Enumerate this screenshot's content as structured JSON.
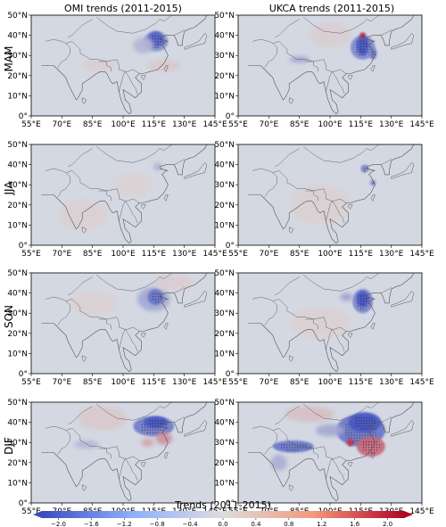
{
  "chart_data": {
    "type": "heatmap",
    "columns": [
      "OMI trends (2011-2015)",
      "UKCA trends (2011-2015)"
    ],
    "rows": [
      "MAM",
      "JJA",
      "SON",
      "DJF"
    ],
    "x_tick_labels": [
      "55°E",
      "70°E",
      "85°E",
      "100°E",
      "115°E",
      "130°E",
      "145°E"
    ],
    "y_tick_labels": [
      "0°",
      "10°N",
      "20°N",
      "30°N",
      "40°N",
      "50°N"
    ],
    "x_ticks": [
      55,
      70,
      85,
      100,
      115,
      130,
      145
    ],
    "y_ticks": [
      0,
      10,
      20,
      30,
      40,
      50
    ],
    "xlim": [
      55,
      145
    ],
    "ylim": [
      0,
      50
    ],
    "colorbar": {
      "label": "Trends (2011-2015)",
      "range": [
        -2.2,
        2.2
      ],
      "ticks": [
        -2.0,
        -1.6,
        -1.2,
        -0.8,
        -0.4,
        0.0,
        0.4,
        0.8,
        1.2,
        1.6,
        2.0
      ],
      "tick_labels": [
        "−2.0",
        "−1.6",
        "−1.2",
        "−0.8",
        "−0.4",
        "0.0",
        "0.4",
        "0.8",
        "1.2",
        "1.6",
        "2.0"
      ],
      "colormap": "coolwarm",
      "colors": {
        "neg_max": "#3b4cc0",
        "zero": "#dddddd",
        "pos_max": "#b40426",
        "map_background": "#d3d8e2",
        "coastline": "#555555"
      }
    },
    "panels": [
      {
        "row": "MAM",
        "column": "OMI",
        "hotspots": [
          {
            "lon": 116,
            "lat": 37,
            "rx": 6,
            "ry": 5,
            "value": -1.2
          },
          {
            "lon": 116,
            "lat": 38,
            "rx": 4,
            "ry": 4,
            "value": -1.8
          },
          {
            "lon": 110,
            "lat": 35,
            "rx": 5,
            "ry": 4,
            "value": -0.6
          },
          {
            "lon": 88,
            "lat": 25,
            "rx": 8,
            "ry": 3,
            "value": 0.15
          },
          {
            "lon": 120,
            "lat": 25,
            "rx": 8,
            "ry": 3,
            "value": 0.2
          }
        ]
      },
      {
        "row": "MAM",
        "column": "UKCA",
        "hotspots": [
          {
            "lon": 116,
            "lat": 34,
            "rx": 6,
            "ry": 6,
            "value": -1.3
          },
          {
            "lon": 116,
            "lat": 35,
            "rx": 3,
            "ry": 5,
            "value": -2.0
          },
          {
            "lon": 116,
            "lat": 40,
            "rx": 1.5,
            "ry": 1.5,
            "value": 1.8
          },
          {
            "lon": 85,
            "lat": 28,
            "rx": 5,
            "ry": 1.5,
            "value": -0.9
          },
          {
            "lon": 121,
            "lat": 31,
            "rx": 2,
            "ry": 3,
            "value": -1.4
          },
          {
            "lon": 100,
            "lat": 40,
            "rx": 10,
            "ry": 6,
            "value": 0.15
          }
        ]
      },
      {
        "row": "JJA",
        "column": "OMI",
        "hotspots": [
          {
            "lon": 117,
            "lat": 39,
            "rx": 2,
            "ry": 2,
            "value": -0.7
          },
          {
            "lon": 80,
            "lat": 15,
            "rx": 12,
            "ry": 8,
            "value": 0.12
          },
          {
            "lon": 105,
            "lat": 30,
            "rx": 10,
            "ry": 6,
            "value": 0.1
          }
        ]
      },
      {
        "row": "JJA",
        "column": "UKCA",
        "hotspots": [
          {
            "lon": 117,
            "lat": 38,
            "rx": 2,
            "ry": 2,
            "value": -1.3
          },
          {
            "lon": 121,
            "lat": 31,
            "rx": 1.5,
            "ry": 1.5,
            "value": -1.2
          },
          {
            "lon": 95,
            "lat": 20,
            "rx": 15,
            "ry": 10,
            "value": 0.12
          }
        ]
      },
      {
        "row": "SON",
        "column": "OMI",
        "hotspots": [
          {
            "lon": 115,
            "lat": 37,
            "rx": 8,
            "ry": 6,
            "value": -0.8
          },
          {
            "lon": 116,
            "lat": 38,
            "rx": 4,
            "ry": 4,
            "value": -1.6
          },
          {
            "lon": 85,
            "lat": 35,
            "rx": 12,
            "ry": 6,
            "value": 0.12
          },
          {
            "lon": 125,
            "lat": 45,
            "rx": 10,
            "ry": 4,
            "value": 0.15
          }
        ]
      },
      {
        "row": "SON",
        "column": "UKCA",
        "hotspots": [
          {
            "lon": 116,
            "lat": 36,
            "rx": 5,
            "ry": 6,
            "value": -1.4
          },
          {
            "lon": 116,
            "lat": 37,
            "rx": 3,
            "ry": 4,
            "value": -2.0
          },
          {
            "lon": 108,
            "lat": 38,
            "rx": 3,
            "ry": 2,
            "value": -0.9
          },
          {
            "lon": 95,
            "lat": 25,
            "rx": 15,
            "ry": 8,
            "value": 0.12
          }
        ]
      },
      {
        "row": "DJF",
        "column": "OMI",
        "hotspots": [
          {
            "lon": 115,
            "lat": 38,
            "rx": 10,
            "ry": 5,
            "value": -1.5
          },
          {
            "lon": 116,
            "lat": 40,
            "rx": 6,
            "ry": 3,
            "value": -2.0
          },
          {
            "lon": 120,
            "lat": 32,
            "rx": 4,
            "ry": 3,
            "value": 0.8
          },
          {
            "lon": 112,
            "lat": 30,
            "rx": 3,
            "ry": 2,
            "value": 0.6
          },
          {
            "lon": 82,
            "lat": 29,
            "rx": 6,
            "ry": 2,
            "value": -0.6
          },
          {
            "lon": 90,
            "lat": 42,
            "rx": 12,
            "ry": 6,
            "value": 0.2
          }
        ]
      },
      {
        "row": "DJF",
        "column": "UKCA",
        "hotspots": [
          {
            "lon": 115,
            "lat": 36,
            "rx": 12,
            "ry": 8,
            "value": -1.6
          },
          {
            "lon": 117,
            "lat": 40,
            "rx": 8,
            "ry": 5,
            "value": -2.0
          },
          {
            "lon": 82,
            "lat": 28,
            "rx": 10,
            "ry": 3,
            "value": -1.6
          },
          {
            "lon": 120,
            "lat": 28,
            "rx": 7,
            "ry": 5,
            "value": 1.2
          },
          {
            "lon": 110,
            "lat": 30,
            "rx": 2,
            "ry": 2,
            "value": 1.6
          },
          {
            "lon": 100,
            "lat": 36,
            "rx": 7,
            "ry": 3,
            "value": -0.8
          },
          {
            "lon": 90,
            "lat": 44,
            "rx": 12,
            "ry": 4,
            "value": 0.3
          },
          {
            "lon": 75,
            "lat": 20,
            "rx": 4,
            "ry": 4,
            "value": -0.7
          }
        ]
      }
    ]
  }
}
